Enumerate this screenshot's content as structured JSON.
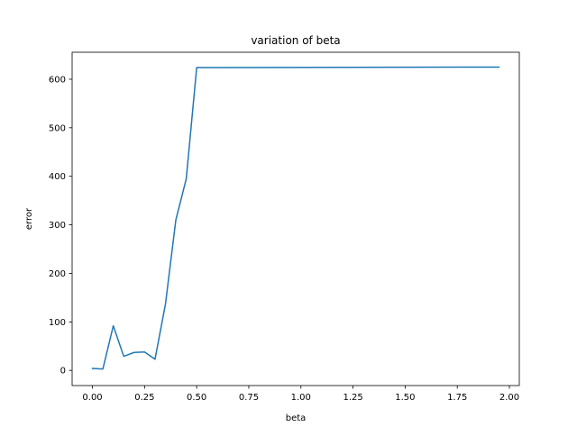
{
  "chart_data": {
    "type": "line",
    "title": "variation of beta",
    "xlabel": "beta",
    "ylabel": "error",
    "xlim": [
      -0.0975,
      2.0475
    ],
    "ylim": [
      -31.2,
      655.6
    ],
    "xticks": [
      0.0,
      0.25,
      0.5,
      0.75,
      1.0,
      1.25,
      1.5,
      1.75,
      2.0
    ],
    "xtick_labels": [
      "0.00",
      "0.25",
      "0.50",
      "0.75",
      "1.00",
      "1.25",
      "1.50",
      "1.75",
      "2.00"
    ],
    "yticks": [
      0,
      100,
      200,
      300,
      400,
      500,
      600
    ],
    "ytick_labels": [
      "0",
      "100",
      "200",
      "300",
      "400",
      "500",
      "600"
    ],
    "grid": false,
    "legend": "none",
    "series": [
      {
        "color": "#1f77b4",
        "x": [
          0.0,
          0.05,
          0.1,
          0.15,
          0.2,
          0.25,
          0.3,
          0.35,
          0.4,
          0.45,
          0.5,
          1.95
        ],
        "y": [
          4,
          3,
          92,
          29,
          37,
          38,
          23,
          136,
          310,
          395,
          624,
          625
        ]
      }
    ]
  }
}
